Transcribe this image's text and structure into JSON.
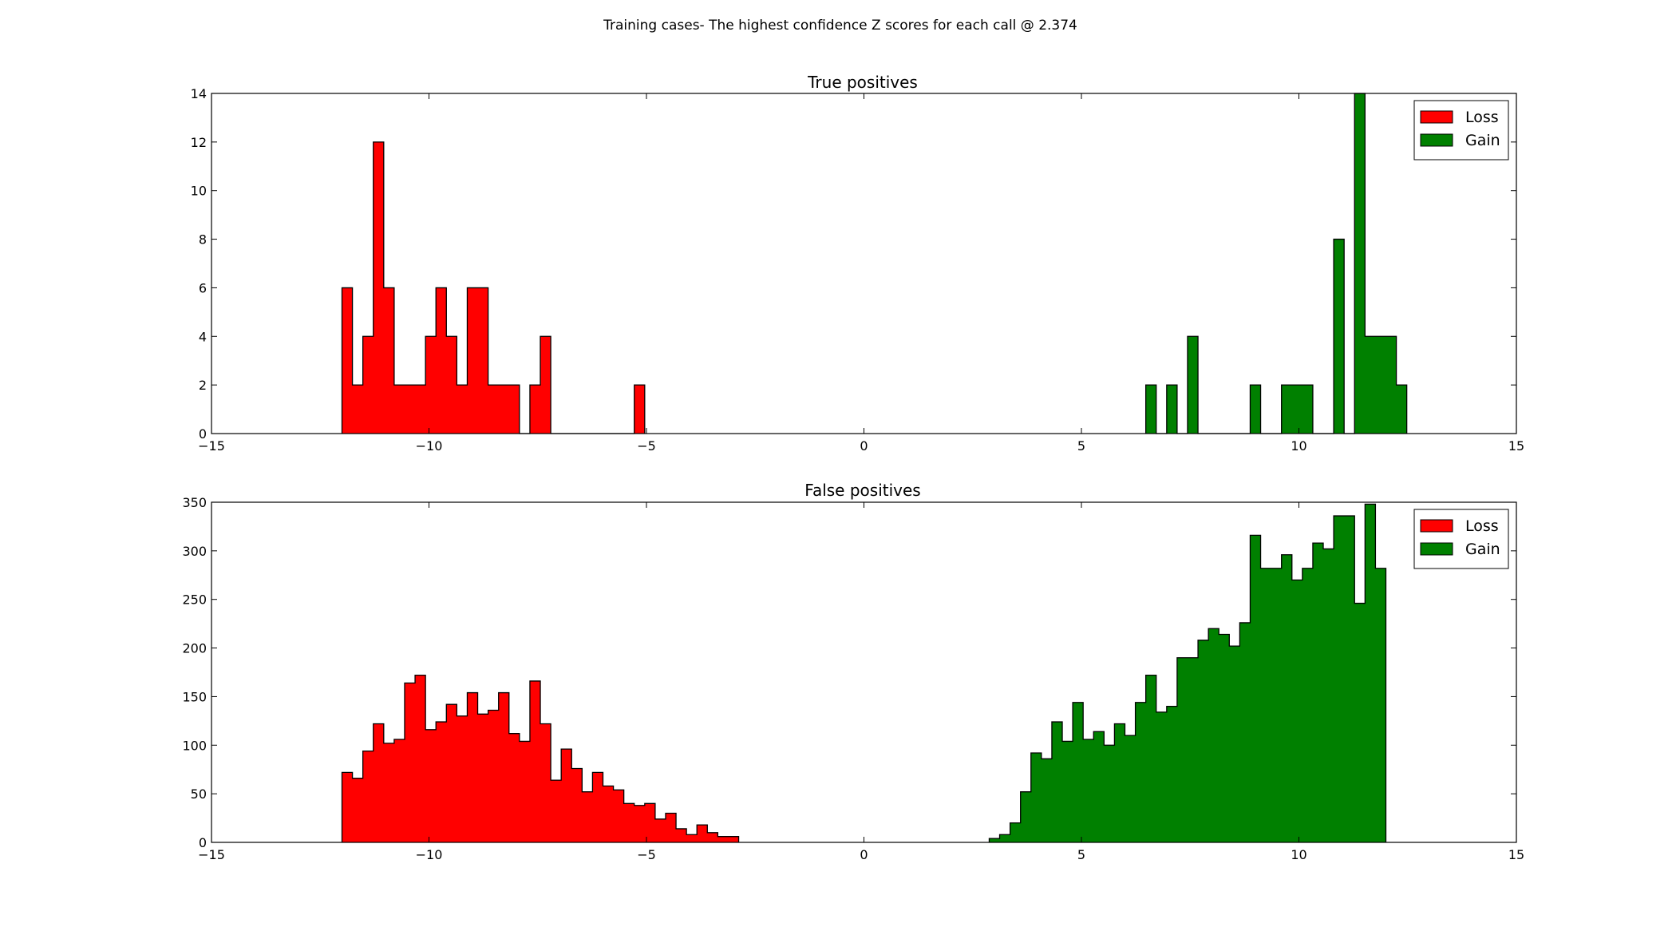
{
  "figure": {
    "suptitle": "Training cases- The highest confidence Z scores for each call @ 2.374"
  },
  "chart_data": [
    {
      "type": "bar",
      "title": "True positives",
      "xlim": [
        -15,
        15
      ],
      "ylim": [
        0,
        14
      ],
      "xticks": [
        -15,
        -10,
        -5,
        0,
        5,
        10,
        15
      ],
      "yticks": [
        0,
        2,
        4,
        6,
        8,
        10,
        12,
        14
      ],
      "xtick_labels": [
        "−15",
        "−10",
        "−5",
        "0",
        "5",
        "10",
        "15"
      ],
      "ytick_labels": [
        "0",
        "2",
        "4",
        "6",
        "8",
        "10",
        "12",
        "14"
      ],
      "bin_width": 0.24,
      "grid": false,
      "legend": "top-right",
      "series": [
        {
          "name": "Loss",
          "color": "#ff0000",
          "bin_start": -12.0,
          "values": [
            6,
            2,
            4,
            12,
            6,
            2,
            2,
            2,
            4,
            6,
            4,
            2,
            6,
            6,
            2,
            2,
            2,
            0,
            2,
            4,
            0,
            0,
            0,
            0,
            0,
            0,
            0,
            0,
            2
          ]
        },
        {
          "name": "Gain",
          "color": "#008000",
          "bin_start": 6.48,
          "values": [
            2,
            0,
            2,
            0,
            4,
            0,
            0,
            0,
            0,
            0,
            2,
            0,
            0,
            2,
            2,
            2,
            0,
            0,
            8,
            0,
            14,
            4,
            4,
            4,
            2
          ]
        }
      ]
    },
    {
      "type": "bar",
      "title": "False positives",
      "xlim": [
        -15,
        15
      ],
      "ylim": [
        0,
        350
      ],
      "xticks": [
        -15,
        -10,
        -5,
        0,
        5,
        10,
        15
      ],
      "yticks": [
        0,
        50,
        100,
        150,
        200,
        250,
        300,
        350
      ],
      "xtick_labels": [
        "−15",
        "−10",
        "−5",
        "0",
        "5",
        "10",
        "15"
      ],
      "ytick_labels": [
        "0",
        "50",
        "100",
        "150",
        "200",
        "250",
        "300",
        "350"
      ],
      "bin_width": 0.24,
      "grid": false,
      "legend": "top-right",
      "series": [
        {
          "name": "Loss",
          "color": "#ff0000",
          "bin_start": -12.0,
          "values": [
            72,
            66,
            94,
            122,
            102,
            106,
            164,
            172,
            116,
            124,
            142,
            130,
            154,
            132,
            136,
            154,
            112,
            104,
            166,
            122,
            64,
            96,
            76,
            52,
            72,
            58,
            54,
            40,
            38,
            40,
            24,
            30,
            14,
            8,
            18,
            10,
            6,
            6
          ]
        },
        {
          "name": "Gain",
          "color": "#008000",
          "bin_start": 2.88,
          "values": [
            4,
            8,
            20,
            52,
            92,
            86,
            124,
            104,
            144,
            106,
            114,
            100,
            122,
            110,
            144,
            172,
            134,
            140,
            190,
            190,
            208,
            220,
            214,
            202,
            226,
            316,
            282,
            282,
            296,
            270,
            282,
            308,
            302,
            336,
            336,
            246,
            348,
            282
          ]
        }
      ]
    }
  ]
}
